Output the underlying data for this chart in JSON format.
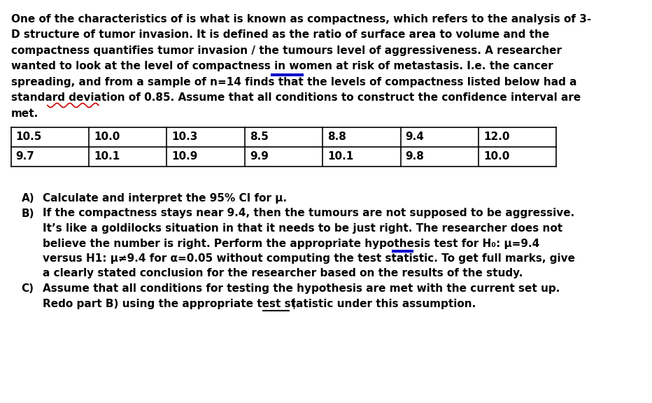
{
  "bg_color": "#ffffff",
  "text_color": "#000000",
  "font_size": 11.0,
  "table_font_size": 11.0,
  "underline_color_ie": "#0000cc",
  "underline_color_h0": "#0000cc",
  "squiggle_color": "#cc0000",
  "para_lines": [
    "One of the characteristics of is what is known as compactness, which refers to the analysis of 3-",
    "D structure of tumor invasion. It is defined as the ratio of surface area to volume and the",
    "compactness quantifies tumor invasion / the tumours level of aggressiveness. A researcher",
    "wanted to look at the level of compactness in women at risk of metastasis. I.e. the cancer",
    "spreading, and from a sample of n=14 finds that the levels of compactness listed below had a",
    "standard deviation of 0.85. Assume that all conditions to construct the confidence interval are",
    "met."
  ],
  "table_row1": [
    "10.5",
    "10.0",
    "10.3",
    "8.5",
    "8.8",
    "9.4",
    "12.0"
  ],
  "table_row2": [
    "9.7",
    "10.1",
    "10.9",
    "9.9",
    "10.1",
    "9.8",
    "10.0"
  ],
  "part_A": "Calculate and interpret the 95% CI for μ.",
  "part_B_lines": [
    "If the compactness stays near 9.4, then the tumours are not supposed to be aggressive.",
    "It’s like a goldilocks situation in that it needs to be just right. The researcher does not",
    "believe the number is right. Perform the appropriate hypothesis test for H₀: μ=9.4",
    "versus H1: μ≠9.4 for α=0.05 without computing the test statistic. To get full marks, give",
    "a clearly stated conclusion for the researcher based on the results of the study."
  ],
  "part_C_lines": [
    "Assume that all conditions for testing the hypothesis are met with the current set up.",
    "Redo part B) using the appropriate test statistic under this assumption."
  ]
}
